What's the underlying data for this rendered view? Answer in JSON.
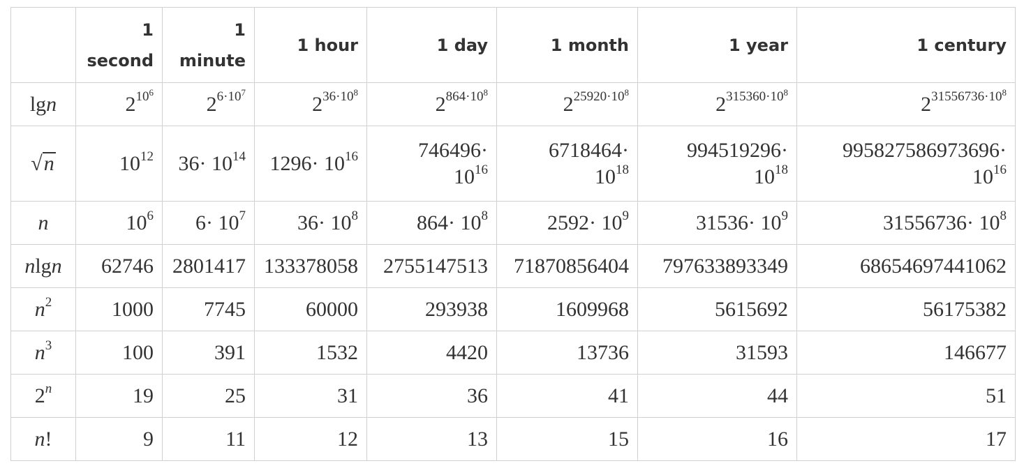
{
  "header": {
    "empty": "",
    "columns": [
      {
        "line1": "1",
        "line2": "second"
      },
      {
        "line1": "1",
        "line2": "minute"
      },
      {
        "line1": "1 hour",
        "line2": ""
      },
      {
        "line1": "1 day",
        "line2": ""
      },
      {
        "line1": "1 month",
        "line2": ""
      },
      {
        "line1": "1 year",
        "line2": ""
      },
      {
        "line1": "1 century",
        "line2": ""
      }
    ]
  },
  "rows": {
    "lgn": {
      "label_lg": "lg",
      "label_n": "n",
      "cells": [
        {
          "base": "2",
          "exp": "10",
          "exp2": "6",
          "mid": ""
        },
        {
          "base": "2",
          "exp": "6·10",
          "exp2": "7",
          "mid": ""
        },
        {
          "base": "2",
          "exp": "36·10",
          "exp2": "8",
          "mid": ""
        },
        {
          "base": "2",
          "exp": "864·10",
          "exp2": "8",
          "mid": ""
        },
        {
          "base": "2",
          "exp": "25920·10",
          "exp2": "8",
          "mid": ""
        },
        {
          "base": "2",
          "exp": "315360·10",
          "exp2": "8",
          "mid": ""
        },
        {
          "base": "2",
          "exp": "31556736·10",
          "exp2": "8",
          "mid": ""
        }
      ]
    },
    "sqrtn": {
      "label_radical": "√",
      "label_n": "n",
      "cells": [
        {
          "a": "",
          "b": "10",
          "e": "12"
        },
        {
          "a": "36· ",
          "b": "10",
          "e": "14"
        },
        {
          "a": "1296· ",
          "b": "10",
          "e": "16"
        },
        {
          "a": "746496·",
          "b": "10",
          "e": "16"
        },
        {
          "a": "6718464·",
          "b": "10",
          "e": "18"
        },
        {
          "a": "994519296·",
          "b": "10",
          "e": "18"
        },
        {
          "a": "995827586973696·",
          "b": "10",
          "e": "16"
        }
      ]
    },
    "n": {
      "label": "n",
      "cells": [
        {
          "a": "",
          "b": "10",
          "e": "6"
        },
        {
          "a": "6· ",
          "b": "10",
          "e": "7"
        },
        {
          "a": "36· ",
          "b": "10",
          "e": "8"
        },
        {
          "a": "864· ",
          "b": "10",
          "e": "8"
        },
        {
          "a": "2592· ",
          "b": "10",
          "e": "9"
        },
        {
          "a": "31536· ",
          "b": "10",
          "e": "9"
        },
        {
          "a": "31556736· ",
          "b": "10",
          "e": "8"
        }
      ]
    },
    "nlgn": {
      "label_n": "n",
      "label_lg": "lg",
      "label_n2": "n",
      "cells": [
        "62746",
        "2801417",
        "133378058",
        "2755147513",
        "71870856404",
        "797633893349",
        "68654697441062"
      ]
    },
    "n2": {
      "label_n": "n",
      "label_exp": "2",
      "cells": [
        "1000",
        "7745",
        "60000",
        "293938",
        "1609968",
        "5615692",
        "56175382"
      ]
    },
    "n3": {
      "label_n": "n",
      "label_exp": "3",
      "cells": [
        "100",
        "391",
        "1532",
        "4420",
        "13736",
        "31593",
        "146677"
      ]
    },
    "twon": {
      "label_base": "2",
      "label_exp": "n",
      "cells": [
        "19",
        "25",
        "31",
        "36",
        "41",
        "44",
        "51"
      ]
    },
    "nfact": {
      "label_n": "n",
      "label_bang": "!",
      "cells": [
        "9",
        "11",
        "12",
        "13",
        "15",
        "16",
        "17"
      ]
    }
  }
}
